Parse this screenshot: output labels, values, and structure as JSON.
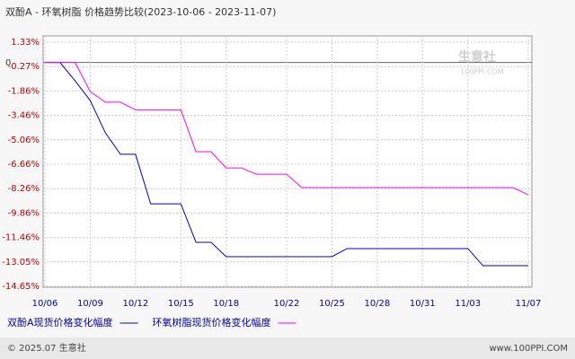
{
  "chart_data": {
    "type": "line",
    "title": "双酚A - 环氧树脂 价格趋势比较(2023-10-06 - 2023-11-07)",
    "x": [
      "10/06",
      null,
      null,
      "10/09",
      null,
      null,
      "10/12",
      null,
      null,
      "10/15",
      null,
      null,
      "10/18",
      null,
      null,
      null,
      "10/22",
      null,
      null,
      "10/25",
      null,
      null,
      "10/28",
      null,
      null,
      "10/31",
      null,
      null,
      "11/03",
      null,
      null,
      null,
      "11/07"
    ],
    "series": [
      {
        "name": "双酚A现货价格变化幅度",
        "color": "#0000cc",
        "values": [
          0,
          0,
          -1.2,
          -2.49,
          -4.6,
          -6.01,
          -6.01,
          -9.25,
          -9.25,
          -9.25,
          -11.77,
          -11.77,
          -12.71,
          -12.71,
          -12.71,
          -12.71,
          -12.71,
          -12.71,
          -12.71,
          -12.71,
          -12.18,
          -12.18,
          -12.18,
          -12.18,
          -12.18,
          -12.18,
          -12.18,
          -12.18,
          -12.18,
          -13.3,
          -13.3,
          -13.3,
          -13.3
        ]
      },
      {
        "name": "环氧树脂现货价格变化幅度",
        "color": "#ff00ff",
        "values": [
          0,
          0,
          0,
          -1.9,
          -2.6,
          -2.6,
          -3.1,
          -3.1,
          -3.1,
          -3.1,
          -5.84,
          -5.84,
          -6.9,
          -6.9,
          -7.31,
          -7.31,
          -7.31,
          -8.19,
          -8.19,
          -8.19,
          -8.19,
          -8.19,
          -8.19,
          -8.19,
          -8.19,
          -8.19,
          -8.19,
          -8.19,
          -8.19,
          -8.19,
          -8.19,
          -8.19,
          -8.66
        ]
      }
    ],
    "ylim": [
      -14.65,
      1.33
    ],
    "yticks": [
      {
        "value": 1.33,
        "label": "1.33%"
      },
      {
        "value": -0.27,
        "label": "-0.27%"
      },
      {
        "value": -1.86,
        "label": "-1.86%"
      },
      {
        "value": -3.46,
        "label": "-3.46%"
      },
      {
        "value": -5.06,
        "label": "-5.06%"
      },
      {
        "value": -6.66,
        "label": "-6.66%"
      },
      {
        "value": -8.26,
        "label": "-8.26%"
      },
      {
        "value": -9.86,
        "label": "-9.86%"
      },
      {
        "value": -11.46,
        "label": "-11.46%"
      },
      {
        "value": -13.05,
        "label": "-13.05%"
      },
      {
        "value": -14.65,
        "label": "-14.65%"
      }
    ],
    "zero_label": "0",
    "grid": true,
    "watermark": {
      "name": "生意社",
      "site": "100PPI.COM"
    }
  },
  "footer": {
    "copyright": "© 2025.07 生意社",
    "site": "www.100PPI.COM"
  }
}
